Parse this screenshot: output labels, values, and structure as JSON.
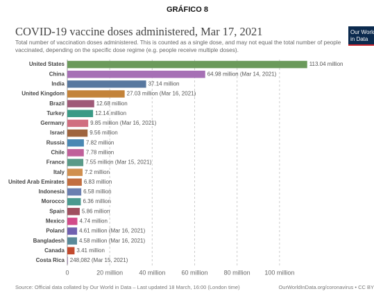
{
  "header": "GRÁFICO 8",
  "logo": [
    "Our World",
    "in Data"
  ],
  "chart_data": {
    "type": "bar",
    "orientation": "horizontal",
    "title": "COVID-19 vaccine doses administered, Mar 17, 2021",
    "subtitle": [
      "Total number of vaccination doses administered. This is counted as a single dose, and may not equal the total number of people",
      "vaccinated, depending on the specific dose regime (e.g. people receive multiple doses)."
    ],
    "categories": [
      "United States",
      "China",
      "India",
      "United Kingdom",
      "Brazil",
      "Turkey",
      "Germany",
      "Israel",
      "Russia",
      "Chile",
      "France",
      "Italy",
      "United Arab Emirates",
      "Indonesia",
      "Morocco",
      "Spain",
      "Mexico",
      "Poland",
      "Bangladesh",
      "Canada",
      "Costa Rica"
    ],
    "values": [
      113.04,
      64.98,
      37.14,
      27.03,
      12.68,
      12.14,
      9.85,
      9.56,
      7.82,
      7.78,
      7.55,
      7.2,
      6.83,
      6.58,
      6.36,
      5.86,
      4.74,
      4.61,
      4.58,
      3.41,
      0.248082
    ],
    "value_labels": [
      "113.04 million",
      "64.98 million (Mar 14, 2021)",
      "37.14 million",
      "27.03 million (Mar 16, 2021)",
      "12.68 million",
      "12.14 million",
      "9.85 million (Mar 16, 2021)",
      "9.56 million",
      "7.82 million",
      "7.78 million",
      "7.55 million (Mar 15, 2021)",
      "7.2 million",
      "6.83 million",
      "6.58 million",
      "6.36 million",
      "5.86 million",
      "4.74 million",
      "4.61 million (Mar 16, 2021)",
      "4.58 million (Mar 16, 2021)",
      "3.41 million",
      "248,082 (Mar 15, 2021)"
    ],
    "colors": [
      "#6b9a5b",
      "#a670b5",
      "#58789f",
      "#c3833a",
      "#9f5a78",
      "#3a9a86",
      "#d06e80",
      "#9f643e",
      "#4a88b3",
      "#c0609a",
      "#5a9a88",
      "#d08f4f",
      "#c26e40",
      "#6a7fb0",
      "#4a9a8f",
      "#a04f5f",
      "#d24a8a",
      "#7060b0",
      "#5a8a99",
      "#c24a2e",
      "#8a6a9a"
    ],
    "xlim": [
      0,
      120
    ],
    "xticks": [
      0,
      {
        "value": 20,
        "label": "20 million"
      },
      {
        "value": 40,
        "label": "40 million"
      },
      {
        "value": 60,
        "label": "60 million"
      },
      {
        "value": 80,
        "label": "80 million"
      },
      {
        "value": 100,
        "label": "100 million"
      }
    ],
    "grid": true,
    "source": "Source: Official data collated by Our World in Data – Last updated 18 March, 16:00 (London time)",
    "url": "OurWorldInData.org/coronavirus • CC BY"
  }
}
